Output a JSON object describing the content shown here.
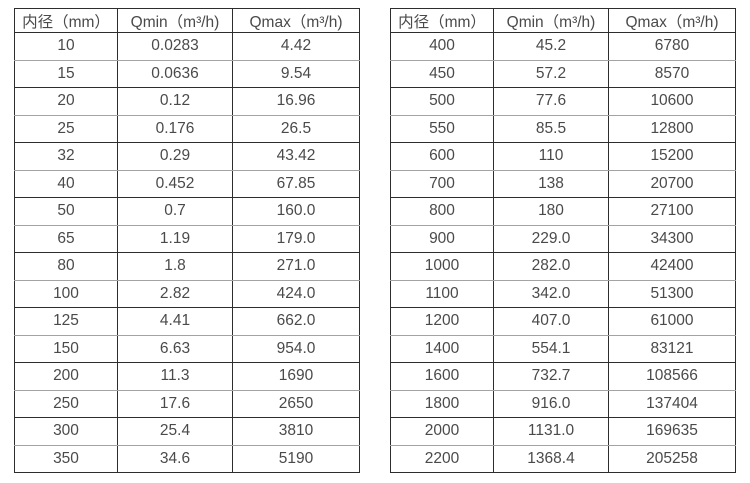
{
  "page": {
    "background_color": "#ffffff",
    "text_color": "#4a4a4a",
    "border_dark_color": "#2d2d2d",
    "border_light_color": "#a3a3a3"
  },
  "tables": [
    {
      "name": "flow-spec-table-small-diameters",
      "headers": [
        "内径（mm）",
        "Qmin（m³/h)",
        "Qmax（m³/h)"
      ],
      "rows": [
        [
          "10",
          "0.0283",
          "4.42"
        ],
        [
          "15",
          "0.0636",
          "9.54"
        ],
        [
          "20",
          "0.12",
          "16.96"
        ],
        [
          "25",
          "0.176",
          "26.5"
        ],
        [
          "32",
          "0.29",
          "43.42"
        ],
        [
          "40",
          "0.452",
          "67.85"
        ],
        [
          "50",
          "0.7",
          "160.0"
        ],
        [
          "65",
          "1.19",
          "179.0"
        ],
        [
          "80",
          "1.8",
          "271.0"
        ],
        [
          "100",
          "2.82",
          "424.0"
        ],
        [
          "125",
          "4.41",
          "662.0"
        ],
        [
          "150",
          "6.63",
          "954.0"
        ],
        [
          "200",
          "11.3",
          "1690"
        ],
        [
          "250",
          "17.6",
          "2650"
        ],
        [
          "300",
          "25.4",
          "3810"
        ],
        [
          "350",
          "34.6",
          "5190"
        ]
      ]
    },
    {
      "name": "flow-spec-table-large-diameters",
      "headers": [
        "内径（mm）",
        "Qmin（m³/h)",
        "Qmax（m³/h)"
      ],
      "rows": [
        [
          "400",
          "45.2",
          "6780"
        ],
        [
          "450",
          "57.2",
          "8570"
        ],
        [
          "500",
          "77.6",
          "10600"
        ],
        [
          "550",
          "85.5",
          "12800"
        ],
        [
          "600",
          "110",
          "15200"
        ],
        [
          "700",
          "138",
          "20700"
        ],
        [
          "800",
          "180",
          "27100"
        ],
        [
          "900",
          "229.0",
          "34300"
        ],
        [
          "1000",
          "282.0",
          "42400"
        ],
        [
          "1100",
          "342.0",
          "51300"
        ],
        [
          "1200",
          "407.0",
          "61000"
        ],
        [
          "1400",
          "554.1",
          "83121"
        ],
        [
          "1600",
          "732.7",
          "108566"
        ],
        [
          "1800",
          "916.0",
          "137404"
        ],
        [
          "2000",
          "1131.0",
          "169635"
        ],
        [
          "2200",
          "1368.4",
          "205258"
        ]
      ]
    }
  ],
  "chart_data": [
    {
      "type": "table",
      "title": "",
      "columns": [
        "内径（mm）",
        "Qmin（m³/h)",
        "Qmax（m³/h)"
      ],
      "rows": [
        [
          10,
          0.0283,
          4.42
        ],
        [
          15,
          0.0636,
          9.54
        ],
        [
          20,
          0.12,
          16.96
        ],
        [
          25,
          0.176,
          26.5
        ],
        [
          32,
          0.29,
          43.42
        ],
        [
          40,
          0.452,
          67.85
        ],
        [
          50,
          0.7,
          160.0
        ],
        [
          65,
          1.19,
          179.0
        ],
        [
          80,
          1.8,
          271.0
        ],
        [
          100,
          2.82,
          424.0
        ],
        [
          125,
          4.41,
          662.0
        ],
        [
          150,
          6.63,
          954.0
        ],
        [
          200,
          11.3,
          1690
        ],
        [
          250,
          17.6,
          2650
        ],
        [
          300,
          25.4,
          3810
        ],
        [
          350,
          34.6,
          5190
        ]
      ]
    },
    {
      "type": "table",
      "title": "",
      "columns": [
        "内径（mm）",
        "Qmin（m³/h)",
        "Qmax（m³/h)"
      ],
      "rows": [
        [
          400,
          45.2,
          6780
        ],
        [
          450,
          57.2,
          8570
        ],
        [
          500,
          77.6,
          10600
        ],
        [
          550,
          85.5,
          12800
        ],
        [
          600,
          110,
          15200
        ],
        [
          700,
          138,
          20700
        ],
        [
          800,
          180,
          27100
        ],
        [
          900,
          229.0,
          34300
        ],
        [
          1000,
          282.0,
          42400
        ],
        [
          1100,
          342.0,
          51300
        ],
        [
          1200,
          407.0,
          61000
        ],
        [
          1400,
          554.1,
          83121
        ],
        [
          1600,
          732.7,
          108566
        ],
        [
          1800,
          916.0,
          137404
        ],
        [
          2000,
          1131.0,
          169635
        ],
        [
          2200,
          1368.4,
          205258
        ]
      ]
    }
  ]
}
